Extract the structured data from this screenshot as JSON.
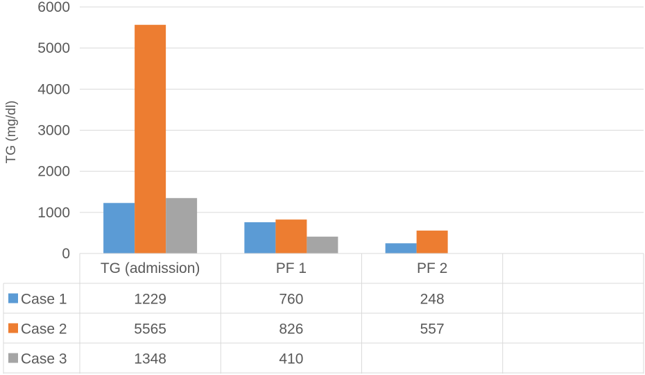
{
  "chart_data": {
    "type": "bar",
    "ylabel": "TG (mg/dl)",
    "ylim": [
      0,
      6000
    ],
    "yticks": [
      0,
      1000,
      2000,
      3000,
      4000,
      5000,
      6000
    ],
    "categories": [
      "TG (admission)",
      "PF 1",
      "PF 2",
      ""
    ],
    "series": [
      {
        "name": "Case 1",
        "color": "#5B9BD5",
        "values": [
          1229,
          760,
          248,
          null
        ]
      },
      {
        "name": "Case 2",
        "color": "#ED7D31",
        "values": [
          5565,
          826,
          557,
          null
        ]
      },
      {
        "name": "Case 3",
        "color": "#A5A5A5",
        "values": [
          1348,
          410,
          null,
          null
        ]
      }
    ],
    "grid": true,
    "legend": "data-table"
  }
}
